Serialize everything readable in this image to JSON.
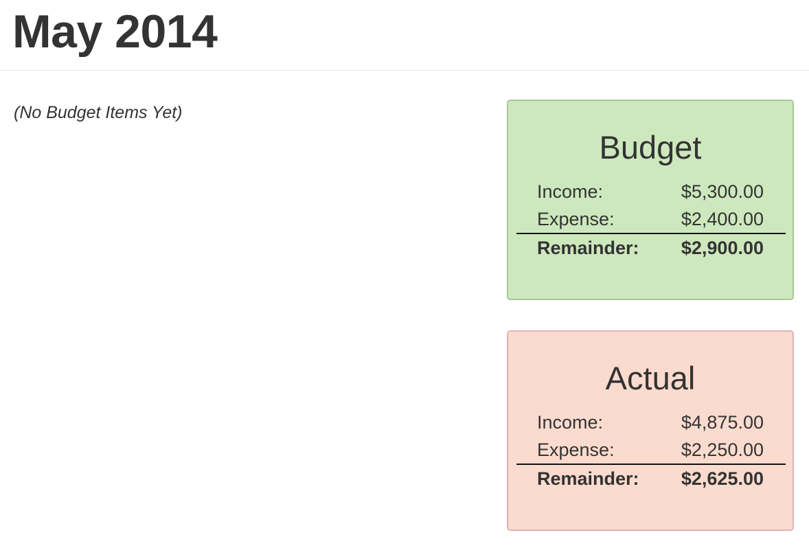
{
  "header": {
    "title": "May 2014"
  },
  "budget_items": {
    "empty_message": "(No Budget Items Yet)"
  },
  "budget": {
    "title": "Budget",
    "income_label": "Income:",
    "income_value": "$5,300.00",
    "expense_label": "Expense:",
    "expense_value": "$2,400.00",
    "remainder_label": "Remainder:",
    "remainder_value": "$2,900.00"
  },
  "actual": {
    "title": "Actual",
    "income_label": "Income:",
    "income_value": "$4,875.00",
    "expense_label": "Expense:",
    "expense_value": "$2,250.00",
    "remainder_label": "Remainder:",
    "remainder_value": "$2,625.00"
  },
  "colors": {
    "budget_card_bg": "#cde8bd",
    "actual_card_bg": "#fbdbce",
    "text": "#333333"
  }
}
